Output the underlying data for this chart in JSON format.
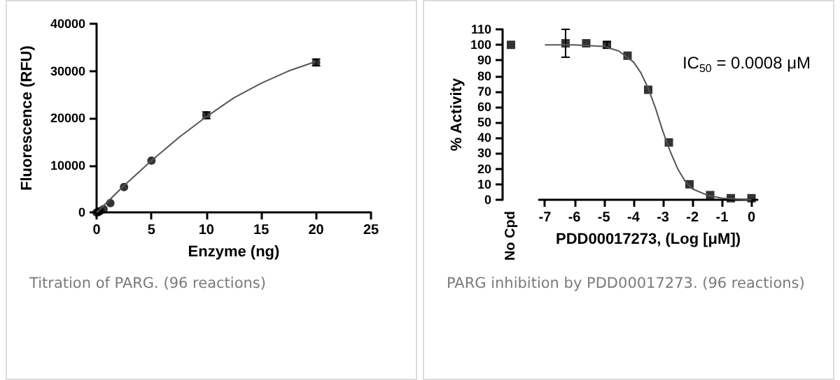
{
  "chart_data": [
    {
      "type": "scatter",
      "xlabel": "Enzyme (ng)",
      "ylabel": "Fluorescence (RFU)",
      "xlim": [
        0,
        25
      ],
      "xticks": [
        0,
        5,
        10,
        15,
        20,
        25
      ],
      "ylim": [
        0,
        40000
      ],
      "yticks": [
        0,
        10000,
        20000,
        30000,
        40000
      ],
      "annotations": [
        "Titration of PARG. (96 reactions)"
      ],
      "series": [
        {
          "color": "#000000",
          "marker": "circle",
          "x": [
            0,
            0.16,
            0.31,
            0.63,
            1.25,
            2.5,
            5,
            10,
            20
          ],
          "values": [
            0,
            100,
            300,
            700,
            2000,
            5400,
            11000,
            20600,
            31800
          ],
          "errors": [
            null,
            null,
            null,
            null,
            null,
            null,
            null,
            700,
            700
          ]
        },
        {
          "type": "line",
          "marker": "none",
          "color": "#555555",
          "x": [
            0,
            2.5,
            5,
            7.5,
            10,
            12.5,
            15,
            17.5,
            20
          ],
          "values": [
            0,
            5700,
            11000,
            15900,
            20300,
            24300,
            27400,
            30000,
            32000
          ]
        }
      ]
    },
    {
      "type": "scatter",
      "categories": [
        "No Cpd"
      ],
      "ylabel": "% Activity",
      "ylim": [
        0,
        110
      ],
      "yticks": [
        0,
        10,
        20,
        30,
        40,
        50,
        60,
        70,
        80,
        90,
        100,
        110
      ],
      "marker": "square",
      "series": [
        {
          "color": "#000000",
          "values": [
            100
          ]
        }
      ]
    },
    {
      "type": "scatter",
      "xlabel": "PDD00017273, (Log [μM])",
      "xlim": [
        -7.2,
        0.2
      ],
      "xticks": [
        -7,
        -6,
        -5,
        -4,
        -3,
        -2,
        -1,
        0
      ],
      "ylim": [
        0,
        110
      ],
      "tick_labels": "x",
      "annotations": [
        "IC$_{50}$ = 0.0008 μM",
        "PARG inhibition by PDD00017273. (96 reactions)"
      ],
      "series": [
        {
          "color": "#000000",
          "marker": "square",
          "x": [
            -6.3,
            -5.6,
            -4.9,
            -4.2,
            -3.5,
            -2.8,
            -2.1,
            -1.4,
            -0.7,
            0
          ],
          "values": [
            101,
            101,
            100,
            93,
            71,
            37,
            10,
            3,
            1,
            1
          ],
          "errors": [
            9,
            null,
            2,
            null,
            null,
            null,
            null,
            null,
            null,
            null
          ]
        },
        {
          "type": "line",
          "marker": "none",
          "color": "#555555",
          "x": [
            -7,
            -6,
            -5,
            -4.5,
            -4,
            -3.75,
            -3.5,
            -3.25,
            -3,
            -2.75,
            -2.5,
            -2.25,
            -2,
            -1.5,
            -1,
            0
          ],
          "values": [
            100,
            100,
            99,
            96,
            89,
            82,
            72,
            59,
            44,
            31,
            20,
            12,
            7,
            3,
            1,
            0
          ]
        }
      ]
    }
  ]
}
